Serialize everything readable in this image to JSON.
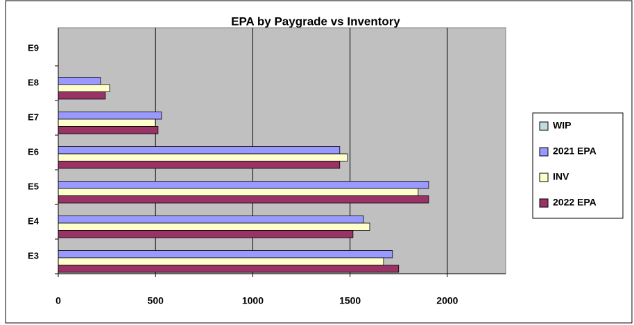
{
  "chart_data": {
    "type": "hbar",
    "title": "EPA by Paygrade vs Inventory",
    "categories": [
      "E3",
      "E4",
      "E5",
      "E6",
      "E7",
      "E8",
      "E9"
    ],
    "series": [
      {
        "name": "WIP",
        "color": "#c0dcdc",
        "values": [
          null,
          null,
          null,
          null,
          null,
          null,
          null
        ]
      },
      {
        "name": "2021 EPA",
        "color": "#9999ff",
        "values": [
          1718,
          1569,
          1904,
          1447,
          531,
          217,
          null
        ]
      },
      {
        "name": "INV",
        "color": "#ffffcc",
        "values": [
          1672,
          1601,
          1850,
          1487,
          499,
          264,
          null
        ]
      },
      {
        "name": "2022 EPA",
        "color": "#993366",
        "values": [
          1750,
          1515,
          1904,
          1447,
          513,
          242,
          null
        ]
      }
    ],
    "xlim": [
      0,
      2300
    ],
    "xticks": [
      0,
      500,
      1000,
      1500,
      2000
    ],
    "grid": true,
    "legend": "right"
  }
}
